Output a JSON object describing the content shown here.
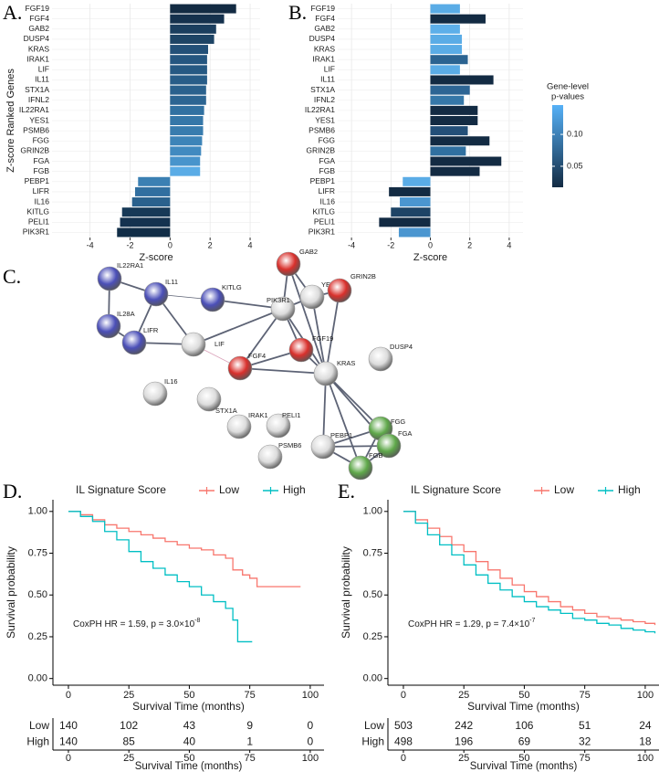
{
  "chart_data": [
    {
      "type": "hbar",
      "panel_label": "A.",
      "categories": [
        "FGF19",
        "FGF4",
        "GAB2",
        "DUSP4",
        "KRAS",
        "IRAK1",
        "LIF",
        "IL11",
        "STX1A",
        "IFNL2",
        "IL22RA1",
        "YES1",
        "PSMB6",
        "FGG",
        "GRIN2B",
        "FGA",
        "FGB",
        "PEBP1",
        "LIFR",
        "IL16",
        "KITLG",
        "PELI1",
        "PIK3R1"
      ],
      "values": [
        3.3,
        2.7,
        2.3,
        2.2,
        1.9,
        1.85,
        1.85,
        1.85,
        1.8,
        1.8,
        1.7,
        1.65,
        1.65,
        1.6,
        1.55,
        1.5,
        1.5,
        -1.6,
        -1.75,
        -1.9,
        -2.4,
        -2.5,
        -2.65
      ],
      "colors": [
        "#132b43",
        "#15314d",
        "#1b3e5e",
        "#1e4465",
        "#235078",
        "#255680",
        "#265983",
        "#285d88",
        "#2a618d",
        "#2c6592",
        "#3171a1",
        "#3577a8",
        "#387cae",
        "#3d84b8",
        "#418ac0",
        "#4894cc",
        "#5aace6",
        "#3b80b3",
        "#316fa0",
        "#2a618d",
        "#173957",
        "#14324f",
        "#112d47"
      ],
      "xlim": [
        -5.9,
        4.5
      ],
      "xticks": [
        -4,
        -2,
        0,
        2,
        4
      ],
      "x_label": "Z-score",
      "y_label": "Z-score Ranked Genes",
      "grid": true
    },
    {
      "type": "hbar",
      "panel_label": "B.",
      "categories": [
        "FGF19",
        "FGF4",
        "GAB2",
        "DUSP4",
        "KRAS",
        "IRAK1",
        "LIF",
        "IL11",
        "STX1A",
        "IFNL2",
        "IL22RA1",
        "YES1",
        "PSMB6",
        "FGG",
        "GRIN2B",
        "FGA",
        "FGB",
        "PEBP1",
        "LIFR",
        "IL16",
        "KITLG",
        "PELI1",
        "PIK3R1"
      ],
      "values": [
        1.5,
        2.8,
        1.5,
        1.6,
        1.6,
        1.9,
        1.5,
        3.2,
        2.0,
        1.7,
        2.4,
        2.4,
        1.9,
        3.0,
        1.8,
        3.6,
        2.5,
        -1.4,
        -2.1,
        -1.55,
        -2.0,
        -2.6,
        -1.6
      ],
      "colors": [
        "#5aace6",
        "#132b43",
        "#5dafe9",
        "#5aace6",
        "#5aace6",
        "#2b6391",
        "#5aace6",
        "#132b43",
        "#2d6594",
        "#3577a8",
        "#132b43",
        "#132b43",
        "#234f78",
        "#132b43",
        "#3070a0",
        "#132b43",
        "#132b43",
        "#5aace6",
        "#132b43",
        "#4b96d0",
        "#1e4466",
        "#132b43",
        "#4b96d0"
      ],
      "xlim": [
        -4.7,
        4.7
      ],
      "xticks": [
        -4,
        -2,
        0,
        2,
        4
      ],
      "x_label": "Z-score",
      "grid": true,
      "colorbar": {
        "title": [
          "Gene-level",
          "p-values"
        ],
        "lim": [
          0.017,
          0.146
        ],
        "ticks": [
          0.05,
          {
            "value": 0.1,
            "label": "0.10"
          }
        ],
        "colors": [
          "#132b43",
          "#56b1f7"
        ]
      }
    },
    {
      "type": "survival",
      "panel_label": "D.",
      "legend_title": "IL Signature Score",
      "series": [
        {
          "name": "Low",
          "color": "#f8766d",
          "x": [
            0,
            5,
            10,
            15,
            20,
            25,
            30,
            35,
            40,
            45,
            50,
            55,
            60,
            65,
            68,
            72,
            75,
            78,
            96
          ],
          "values": [
            1,
            0.98,
            0.95,
            0.92,
            0.9,
            0.88,
            0.86,
            0.84,
            0.82,
            0.8,
            0.78,
            0.77,
            0.74,
            0.72,
            0.65,
            0.62,
            0.6,
            0.55,
            0.55
          ]
        },
        {
          "name": "High",
          "color": "#00bfc4",
          "x": [
            0,
            5,
            10,
            15,
            20,
            25,
            30,
            35,
            40,
            45,
            50,
            55,
            60,
            65,
            68,
            70,
            76
          ],
          "values": [
            1,
            0.97,
            0.94,
            0.88,
            0.83,
            0.76,
            0.7,
            0.66,
            0.62,
            0.58,
            0.55,
            0.5,
            0.46,
            0.42,
            0.35,
            0.22,
            0.22
          ]
        }
      ],
      "xlim": [
        -6.4,
        105.7
      ],
      "ylim": [
        -0.04,
        1.07
      ],
      "xticks": [
        0,
        25,
        50,
        75,
        100
      ],
      "yticks": [
        {
          "value": 0,
          "label": "0.00"
        },
        {
          "value": 0.25,
          "label": "0.25"
        },
        {
          "value": 0.5,
          "label": "0.50"
        },
        {
          "value": 0.75,
          "label": "0.75"
        },
        {
          "value": 1,
          "label": "1.00"
        }
      ],
      "x_label": "Survival Time (months)",
      "y_label": "Survival probability",
      "annotation": "CoxPH HR = 1.59, p = 3.0×10",
      "annotation_exponent": "-8",
      "risk_table": {
        "rows": [
          "Low",
          "High"
        ],
        "values": [
          [
            140,
            102,
            43,
            9,
            0
          ],
          [
            140,
            85,
            40,
            1,
            0
          ]
        ],
        "xticks": [
          0,
          25,
          50,
          75,
          100
        ],
        "x_label": "Survival Time (months)"
      }
    },
    {
      "type": "survival",
      "panel_label": "E.",
      "legend_title": "IL Signature Score",
      "series": [
        {
          "name": "Low",
          "color": "#f8766d",
          "x": [
            0,
            5,
            10,
            15,
            20,
            25,
            30,
            35,
            40,
            45,
            50,
            55,
            60,
            65,
            70,
            75,
            80,
            85,
            90,
            95,
            100,
            104
          ],
          "values": [
            1,
            0.95,
            0.9,
            0.85,
            0.8,
            0.76,
            0.7,
            0.65,
            0.6,
            0.56,
            0.52,
            0.49,
            0.46,
            0.43,
            0.41,
            0.39,
            0.37,
            0.36,
            0.35,
            0.34,
            0.33,
            0.32
          ]
        },
        {
          "name": "High",
          "color": "#00bfc4",
          "x": [
            0,
            5,
            10,
            15,
            20,
            25,
            30,
            35,
            40,
            45,
            50,
            55,
            60,
            65,
            70,
            75,
            80,
            85,
            90,
            95,
            100,
            104
          ],
          "values": [
            1,
            0.93,
            0.86,
            0.8,
            0.74,
            0.68,
            0.62,
            0.57,
            0.53,
            0.49,
            0.46,
            0.43,
            0.41,
            0.39,
            0.36,
            0.35,
            0.33,
            0.32,
            0.3,
            0.29,
            0.28,
            0.27
          ]
        }
      ],
      "xlim": [
        -6.4,
        105.7
      ],
      "ylim": [
        -0.04,
        1.07
      ],
      "xticks": [
        0,
        25,
        50,
        75,
        100
      ],
      "yticks": [
        {
          "value": 0,
          "label": "0.00"
        },
        {
          "value": 0.25,
          "label": "0.25"
        },
        {
          "value": 0.5,
          "label": "0.50"
        },
        {
          "value": 0.75,
          "label": "0.75"
        },
        {
          "value": 1,
          "label": "1.00"
        }
      ],
      "x_label": "Survival Time (months)",
      "y_label": "Survival probability",
      "annotation": "CoxPH HR = 1.29, p = 7.4×10",
      "annotation_exponent": "-7",
      "risk_table": {
        "rows": [
          "Low",
          "High"
        ],
        "values": [
          [
            503,
            242,
            106,
            51,
            24
          ],
          [
            498,
            196,
            69,
            32,
            18
          ]
        ],
        "xticks": [
          0,
          25,
          50,
          75,
          100
        ],
        "x_label": "Survival Time (months)"
      }
    }
  ],
  "network": {
    "panel_label": "C.",
    "nodes": [
      {
        "label": "IL22RA1",
        "color": "#4b4fb8"
      },
      {
        "label": "IL11",
        "color": "#4b4fb8"
      },
      {
        "label": "KITLG",
        "color": "#4b4fb8"
      },
      {
        "label": "IL28A",
        "color": "#4b4fb8"
      },
      {
        "label": "LIFR",
        "color": "#4b4fb8"
      },
      {
        "label": "LIF",
        "color": "#dcdcdc"
      },
      {
        "label": "PIK3R1",
        "color": "#dcdcdc"
      },
      {
        "label": "GAB2",
        "color": "#d9302c"
      },
      {
        "label": "YES1",
        "color": "#dcdcdc"
      },
      {
        "label": "GRIN2B",
        "color": "#d9302c"
      },
      {
        "label": "FGF19",
        "color": "#d9302c"
      },
      {
        "label": "FGF4",
        "color": "#d9302c"
      },
      {
        "label": "KRAS",
        "color": "#dcdcdc"
      },
      {
        "label": "DUSP4",
        "color": "#dcdcdc"
      },
      {
        "label": "IL16",
        "color": "#dcdcdc"
      },
      {
        "label": "STX1A",
        "color": "#dcdcdc"
      },
      {
        "label": "PELI1",
        "color": "#dcdcdc"
      },
      {
        "label": "IRAK1",
        "color": "#dcdcdc"
      },
      {
        "label": "PSMB6",
        "color": "#dcdcdc"
      },
      {
        "label": "PEBP1",
        "color": "#dcdcdc"
      },
      {
        "label": "FGG",
        "color": "#5fa84a"
      },
      {
        "label": "FGA",
        "color": "#5fa84a"
      },
      {
        "label": "FGB",
        "color": "#5fa84a"
      }
    ]
  }
}
